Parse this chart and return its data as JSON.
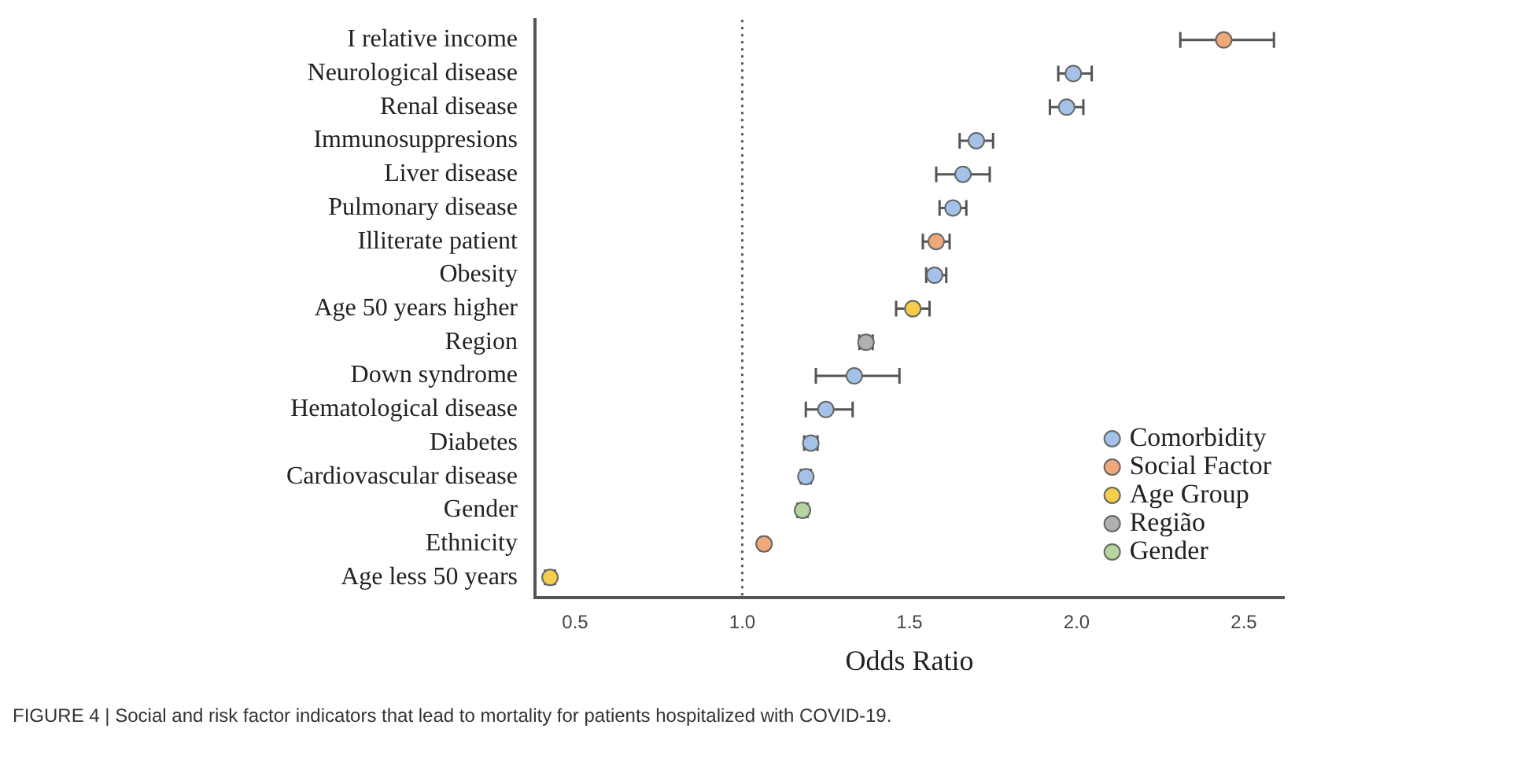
{
  "chart_data": {
    "type": "scatter",
    "orientation": "horizontal",
    "xlabel": "Odds Ratio",
    "categories": [
      "I relative income",
      "Neurological disease",
      "Renal disease",
      "Immunosuppresions",
      "Liver disease",
      "Pulmonary disease",
      "Illiterate patient",
      "Obesity",
      "Age 50 years higher",
      "Region",
      "Down syndrome",
      "Hematological disease",
      "Diabetes",
      "Cardiovascular disease",
      "Gender",
      "Ethnicity",
      "Age less 50 years"
    ],
    "series": [
      {
        "name": "Comorbidity",
        "color": "#a4c2e8",
        "values": [
          null,
          1.99,
          1.97,
          1.7,
          1.66,
          1.63,
          null,
          1.575,
          null,
          null,
          1.335,
          1.25,
          1.205,
          1.19,
          null,
          null,
          null
        ],
        "errors": [
          null,
          [
            1.945,
            2.045
          ],
          [
            1.92,
            2.02
          ],
          [
            1.65,
            1.75
          ],
          [
            1.58,
            1.74
          ],
          [
            1.59,
            1.67
          ],
          null,
          [
            1.55,
            1.61
          ],
          null,
          null,
          [
            1.22,
            1.47
          ],
          [
            1.19,
            1.33
          ],
          [
            1.185,
            1.225
          ],
          [
            1.175,
            1.205
          ],
          null,
          null,
          null
        ]
      },
      {
        "name": "Social Factor",
        "color": "#f0a877",
        "values": [
          2.44,
          null,
          null,
          null,
          null,
          null,
          1.58,
          null,
          null,
          null,
          null,
          null,
          null,
          null,
          null,
          1.065,
          null
        ],
        "errors": [
          [
            2.31,
            2.59
          ],
          null,
          null,
          null,
          null,
          null,
          [
            1.54,
            1.62
          ],
          null,
          null,
          null,
          null,
          null,
          null,
          null,
          null,
          [
            1.055,
            1.075
          ],
          null
        ]
      },
      {
        "name": "Age Group",
        "color": "#f5cd4a",
        "values": [
          null,
          null,
          null,
          null,
          null,
          null,
          null,
          null,
          1.51,
          null,
          null,
          null,
          null,
          null,
          null,
          null,
          0.425
        ],
        "errors": [
          null,
          null,
          null,
          null,
          null,
          null,
          null,
          null,
          [
            1.46,
            1.56
          ],
          null,
          null,
          null,
          null,
          null,
          null,
          null,
          [
            0.41,
            0.44
          ]
        ]
      },
      {
        "name": "Região",
        "color": "#b0b0b0",
        "values": [
          null,
          null,
          null,
          null,
          null,
          null,
          null,
          null,
          null,
          1.37,
          null,
          null,
          null,
          null,
          null,
          null,
          null
        ],
        "errors": [
          null,
          null,
          null,
          null,
          null,
          null,
          null,
          null,
          null,
          [
            1.35,
            1.39
          ],
          null,
          null,
          null,
          null,
          null,
          null,
          null
        ]
      },
      {
        "name": "Gender",
        "color": "#b5d6a0",
        "values": [
          null,
          null,
          null,
          null,
          null,
          null,
          null,
          null,
          null,
          null,
          null,
          null,
          null,
          null,
          1.18,
          null,
          null
        ],
        "errors": [
          null,
          null,
          null,
          null,
          null,
          null,
          null,
          null,
          null,
          null,
          null,
          null,
          null,
          null,
          [
            1.165,
            1.195
          ],
          null,
          null
        ]
      }
    ],
    "xlim": [
      0.38,
      2.62
    ],
    "xticks": [
      {
        "value": 0.5,
        "label": "0.5"
      },
      {
        "value": 1,
        "label": "1.0"
      },
      {
        "value": 1.5,
        "label": "1.5"
      },
      {
        "value": 2,
        "label": "2.0"
      },
      {
        "value": 2.5,
        "label": "2.5"
      }
    ],
    "ref_lines": [
      {
        "axis": "x",
        "value": 1,
        "line_style": "dotted",
        "color": "#555555"
      }
    ],
    "legend": "bottom right",
    "marker": "circle",
    "grid": false,
    "annotations": [
      "FIGURE 4 | Social and risk factor indicators that lead to mortality for patients hospitalized with COVID-19."
    ]
  }
}
